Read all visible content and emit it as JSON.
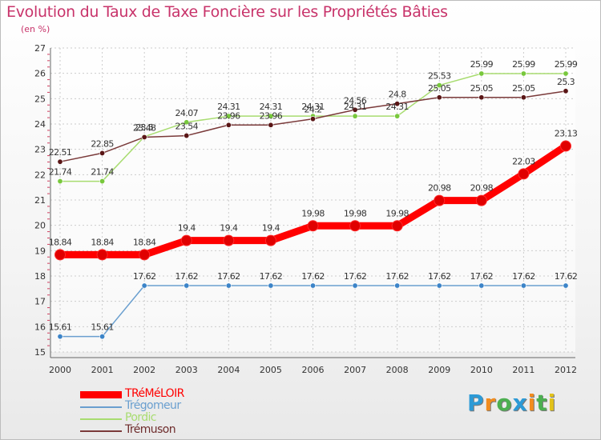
{
  "title": "Evolution du Taux de Taxe Foncière sur les Propriétés Bâties",
  "subtitle": "(en %)",
  "logo": {
    "text": "Proxiti",
    "letters": [
      {
        "ch": "P",
        "color": "#2c9ad6"
      },
      {
        "ch": "r",
        "color": "#f28c1e"
      },
      {
        "ch": "o",
        "color": "#4caf50"
      },
      {
        "ch": "x",
        "color": "#2c9ad6"
      },
      {
        "ch": "i",
        "color": "#f28c1e"
      },
      {
        "ch": "t",
        "color": "#4caf50"
      },
      {
        "ch": "i",
        "color": "#e2c21a"
      }
    ]
  },
  "chart_data": {
    "type": "line",
    "title": "Evolution du Taux de Taxe Foncière sur les Propriétés Bâties",
    "ylabel": "(en %)",
    "xlabel": "",
    "categories": [
      "2000",
      "2001",
      "2002",
      "2003",
      "2004",
      "2005",
      "2006",
      "2007",
      "2008",
      "2009",
      "2010",
      "2011",
      "2012"
    ],
    "ylim": [
      15,
      27
    ],
    "yticks": [
      "15",
      "16",
      "17",
      "18",
      "19",
      "20",
      "21",
      "22",
      "23",
      "24",
      "25",
      "26",
      "27"
    ],
    "grid": true,
    "legend": "bottom-left",
    "series": [
      {
        "name": "TRéMéLOIR",
        "color": "#ff0000",
        "marker": "#e00000",
        "emphasis": true,
        "values": [
          18.84,
          18.84,
          18.84,
          19.4,
          19.4,
          19.4,
          19.98,
          19.98,
          19.98,
          20.98,
          20.98,
          22.03,
          23.13
        ],
        "labels": [
          "18.84",
          "18.84",
          "18.84",
          "19.4",
          "19.4",
          "19.4",
          "19.98",
          "19.98",
          "19.98",
          "20.98",
          "20.98",
          "22.03",
          "23.13"
        ]
      },
      {
        "name": "Trégomeur",
        "color": "#6a9fcf",
        "marker": "#3c84c8",
        "emphasis": false,
        "values": [
          15.61,
          15.61,
          17.62,
          17.62,
          17.62,
          17.62,
          17.62,
          17.62,
          17.62,
          17.62,
          17.62,
          17.62,
          17.62
        ],
        "labels": [
          "15.61",
          "15.61",
          "17.62",
          "17.62",
          "17.62",
          "17.62",
          "17.62",
          "17.62",
          "17.62",
          "17.62",
          "17.62",
          "17.62",
          "17.62"
        ]
      },
      {
        "name": "Pordic",
        "color": "#a8dc70",
        "marker": "#78c83c",
        "emphasis": false,
        "values": [
          21.74,
          21.74,
          23.5,
          24.07,
          24.31,
          24.31,
          24.31,
          24.31,
          24.31,
          25.53,
          25.99,
          25.99,
          25.99
        ],
        "labels": [
          "21.74",
          "21.74",
          "23.5",
          "24.07",
          "24.31",
          "24.31",
          "24.31",
          "24.31",
          "24.31",
          "25.53",
          "25.99",
          "25.99",
          "25.99"
        ]
      },
      {
        "name": "Trémuson",
        "color": "#7a3a3a",
        "marker": "#5a1616",
        "emphasis": false,
        "values": [
          22.51,
          22.85,
          23.48,
          23.54,
          23.96,
          23.96,
          24.2,
          24.56,
          24.8,
          25.05,
          25.05,
          25.05,
          25.3
        ],
        "labels": [
          "22.51",
          "22.85",
          "23.48",
          "23.54",
          "23.96",
          "23.96",
          "24.2",
          "24.56",
          "24.8",
          "25.05",
          "25.05",
          "25.05",
          "25.3"
        ]
      }
    ]
  }
}
